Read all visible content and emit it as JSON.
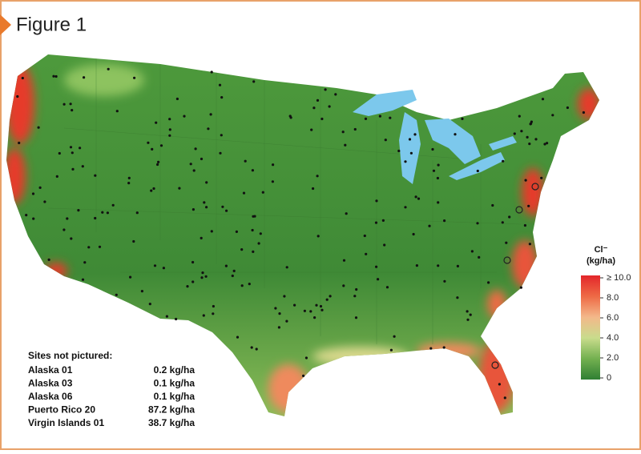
{
  "header": {
    "title": "Figure 1"
  },
  "legend": {
    "title": "Cl⁻",
    "unit": "(kg/ha)",
    "ticks": [
      {
        "value": 10,
        "label": "≥ 10.0"
      },
      {
        "value": 8,
        "label": "8.0"
      },
      {
        "value": 6,
        "label": "6.0"
      },
      {
        "value": 4,
        "label": "4.0"
      },
      {
        "value": 2,
        "label": "2.0"
      },
      0
    ]
  },
  "sites_not_pictured": {
    "title": "Sites not pictured:",
    "rows": [
      [
        "Alaska 01",
        "0.2 kg/ha"
      ],
      [
        "Alaska 03",
        "0.1 kg/ha"
      ],
      [
        "Alaska 06",
        "0.1 kg/ha"
      ],
      [
        "Puerto Rico 20",
        "87.2 kg/ha"
      ],
      [
        "Virgin Islands 01",
        "38.7 kg/ha"
      ]
    ]
  }
}
